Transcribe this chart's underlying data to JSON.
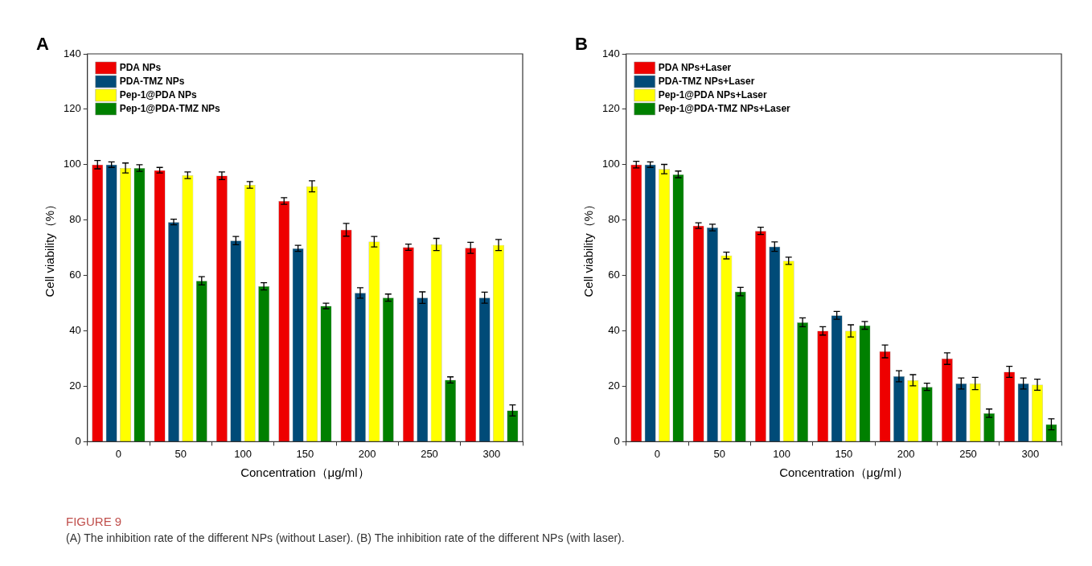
{
  "chart_data": [
    {
      "type": "bar",
      "title": "A",
      "xlabel": "Concentration（μg/ml）",
      "ylabel": "Cell viability（%）",
      "categories": [
        "0",
        "50",
        "100",
        "150",
        "200",
        "250",
        "300"
      ],
      "series": [
        {
          "name": "PDA NPs",
          "color": "#ee0000",
          "values": [
            100,
            98,
            96,
            86.9,
            76.5,
            70.2,
            70
          ],
          "errors": [
            1.5,
            1,
            1.4,
            1.2,
            2.3,
            1.1,
            2
          ]
        },
        {
          "name": "PDA-TMZ NPs",
          "color": "#004b78",
          "values": [
            100,
            79.3,
            72.6,
            69.8,
            53.7,
            52,
            52
          ],
          "errors": [
            1,
            1,
            1.5,
            1.1,
            1.9,
            2.1,
            2
          ]
        },
        {
          "name": "Pep-1@PDA NPs",
          "color": "#ffff00",
          "values": [
            98.8,
            96.2,
            92.7,
            92.2,
            72.2,
            71.2,
            71
          ],
          "errors": [
            1.8,
            1.2,
            1.2,
            2,
            1.9,
            2.2,
            2
          ]
        },
        {
          "name": "Pep-1@PDA-TMZ NPs",
          "color": "#008000",
          "values": [
            98.8,
            58.1,
            56.1,
            49,
            52,
            22.3,
            11.3
          ],
          "errors": [
            1.2,
            1.5,
            1.3,
            1,
            1.3,
            1.1,
            2
          ]
        }
      ],
      "ylim": [
        0,
        140
      ],
      "yticks": [
        0,
        20,
        40,
        60,
        80,
        100,
        120,
        140
      ],
      "grid": false,
      "legend": "top left",
      "annotations": [
        "FIGURE 9",
        "(A) The inhibition rate of the different NPs (without Laser). (B) The inhibition rate of the different NPs (with laser)."
      ]
    },
    {
      "type": "bar",
      "title": "B",
      "xlabel": "Concentration（μg/ml）",
      "ylabel": "Cell viability（%）",
      "categories": [
        "0",
        "50",
        "100",
        "150",
        "200",
        "250",
        "300"
      ],
      "series": [
        {
          "name": "PDA NPs+Laser",
          "color": "#ee0000",
          "values": [
            100,
            78,
            76.1,
            40,
            32.6,
            30,
            25.2
          ],
          "errors": [
            1.2,
            1,
            1.3,
            1.5,
            2.3,
            2.1,
            2
          ]
        },
        {
          "name": "PDA-TMZ NPs+Laser",
          "color": "#004b78",
          "values": [
            100,
            77.3,
            70.4,
            45.6,
            23.6,
            21,
            21
          ],
          "errors": [
            1,
            1.2,
            1.7,
            1.4,
            2,
            2,
            2
          ]
        },
        {
          "name": "Pep-1@PDA NPs+Laser",
          "color": "#ffff00",
          "values": [
            98.4,
            67.2,
            65.3,
            40,
            22.2,
            21,
            20.6
          ],
          "errors": [
            1.7,
            1.2,
            1.3,
            2.2,
            2,
            2.2,
            2
          ]
        },
        {
          "name": "Pep-1@PDA-TMZ NPs+Laser",
          "color": "#008000",
          "values": [
            96.5,
            54.2,
            43.1,
            42,
            19.8,
            10.3,
            6.3
          ],
          "errors": [
            1.2,
            1.5,
            1.6,
            1.4,
            1.3,
            1.5,
            2
          ]
        }
      ],
      "ylim": [
        0,
        140
      ],
      "yticks": [
        0,
        20,
        40,
        60,
        80,
        100,
        120,
        140
      ],
      "grid": false,
      "legend": "top left"
    }
  ]
}
